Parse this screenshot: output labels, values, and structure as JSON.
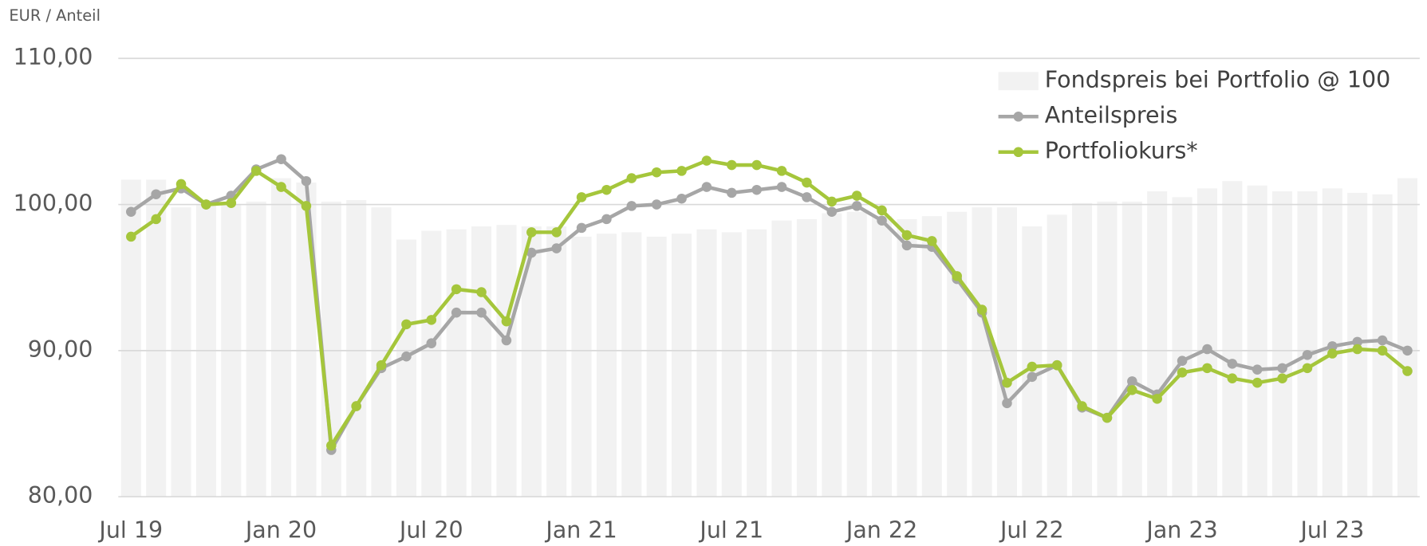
{
  "chart_data": {
    "type": "bar-line",
    "y_label": "EUR / Anteil",
    "categories": [
      "Jul 19",
      null,
      null,
      null,
      null,
      null,
      "Jan 20",
      null,
      null,
      null,
      null,
      null,
      "Jul 20",
      null,
      null,
      null,
      null,
      null,
      "Jan 21",
      null,
      null,
      null,
      null,
      null,
      "Jul 21",
      null,
      null,
      null,
      null,
      null,
      "Jan 22",
      null,
      null,
      null,
      null,
      null,
      "Jul 22",
      null,
      null,
      null,
      null,
      null,
      "Jan 23",
      null,
      null,
      null,
      null,
      null,
      "Jul 23",
      null,
      null,
      null
    ],
    "series": [
      {
        "name": "Fondspreis bei Portfolio @ 100",
        "kind": "bar",
        "color": "#f2f2f2",
        "values": [
          101.7,
          101.7,
          99.8,
          100.0,
          100.0,
          100.2,
          101.8,
          101.5,
          100.2,
          100.3,
          99.8,
          97.6,
          98.2,
          98.3,
          98.5,
          98.6,
          98.5,
          98.5,
          97.8,
          98.0,
          98.1,
          97.8,
          98.0,
          98.3,
          98.1,
          98.3,
          98.9,
          99.0,
          99.4,
          99.5,
          99.2,
          99.0,
          99.2,
          99.5,
          99.8,
          99.8,
          98.5,
          99.3,
          100.1,
          100.2,
          100.2,
          100.9,
          100.5,
          101.1,
          101.6,
          101.3,
          100.9,
          100.9,
          101.1,
          100.8,
          100.7,
          101.8
        ]
      },
      {
        "name": "Anteilspreis",
        "kind": "line",
        "color": "#a6a6a6",
        "values": [
          99.5,
          100.7,
          101.1,
          100.0,
          100.6,
          102.4,
          103.1,
          101.6,
          83.2,
          86.2,
          88.8,
          89.6,
          90.5,
          92.6,
          92.6,
          90.7,
          96.7,
          97.0,
          98.4,
          99.0,
          99.9,
          100.0,
          100.4,
          101.2,
          100.8,
          101.0,
          101.2,
          100.5,
          99.5,
          99.9,
          98.9,
          97.2,
          97.1,
          94.9,
          92.6,
          86.4,
          88.2,
          89.0,
          86.1,
          85.4,
          87.9,
          87.0,
          89.3,
          90.1,
          89.1,
          88.7,
          88.8,
          89.7,
          90.3,
          90.6,
          90.7,
          90.0
        ]
      },
      {
        "name": "Portfoliokurs*",
        "kind": "line",
        "color": "#a5c63b",
        "values": [
          97.8,
          99.0,
          101.4,
          100.0,
          100.1,
          102.3,
          101.2,
          99.9,
          83.5,
          86.2,
          89.0,
          91.8,
          92.1,
          94.2,
          94.0,
          92.0,
          98.1,
          98.1,
          100.5,
          101.0,
          101.8,
          102.2,
          102.3,
          103.0,
          102.7,
          102.7,
          102.3,
          101.5,
          100.2,
          100.6,
          99.6,
          97.9,
          97.5,
          95.1,
          92.8,
          87.8,
          88.9,
          89.0,
          86.2,
          85.4,
          87.3,
          86.7,
          88.5,
          88.8,
          88.1,
          87.8,
          88.1,
          88.8,
          89.8,
          90.1,
          90.0,
          88.6
        ]
      }
    ],
    "ylim": [
      80,
      110
    ],
    "yticks": [
      {
        "value": 80,
        "label": "80,00"
      },
      {
        "value": 90,
        "label": "90,00"
      },
      {
        "value": 100,
        "label": "100,00"
      },
      {
        "value": 110,
        "label": "110,00"
      }
    ],
    "grid": true,
    "legend": "top-right"
  }
}
